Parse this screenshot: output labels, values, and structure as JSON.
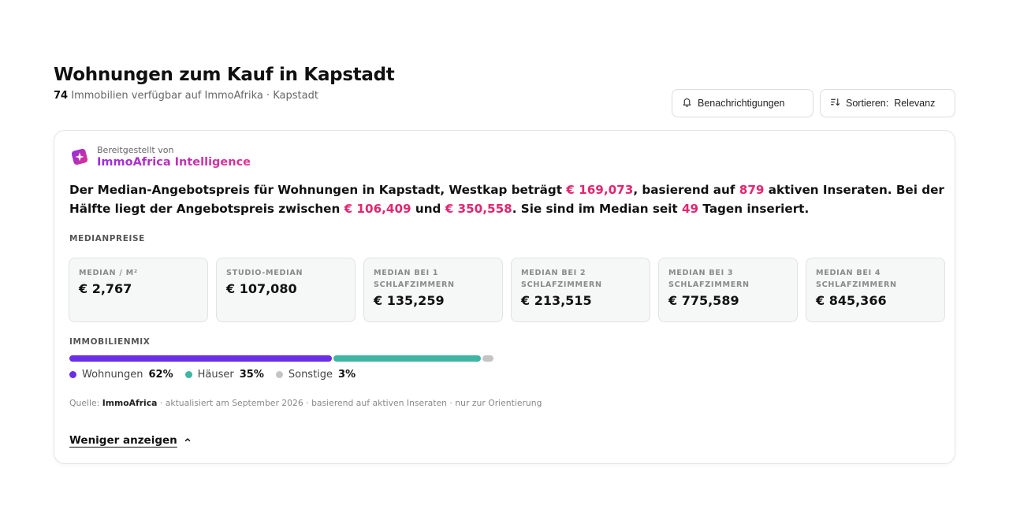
{
  "header": {
    "title": "Wohnungen zum Kauf in Kapstadt",
    "count": "74",
    "subtitle_rest": "Immobilien verfügbar auf ImmoAfrika · Kapstadt",
    "notify_label": "Benachrichtigungen",
    "sort_prefix": "Sortieren:",
    "sort_value": "Relevanz"
  },
  "card": {
    "provider_kicker": "Bereitgestellt von",
    "provider_name": "ImmoAfrica Intelligence",
    "summary": {
      "t1": "Der Median-Angebotspreis für Wohnungen in Kapstadt, Westkap beträgt ",
      "median_price": "€ 169,073",
      "t2": ", basierend auf ",
      "active_count": "879",
      "t3": " aktiven Inseraten. Bei der Hälfte liegt der Angebotspreis zwischen ",
      "range_low": "€ 106,409",
      "t4": " und ",
      "range_high": "€ 350,558",
      "t5": ". Sie sind im Median seit ",
      "days": "49",
      "t6": " Tagen inseriert."
    },
    "prices_label": "MEDIANPREISE",
    "tiles": [
      {
        "label": "MEDIAN / M²",
        "value": "€ 2,767"
      },
      {
        "label": "STUDIO-MEDIAN",
        "value": "€ 107,080"
      },
      {
        "label": "MEDIAN BEI 1 SCHLAFZIMMERN",
        "value": "€ 135,259"
      },
      {
        "label": "MEDIAN BEI 2 SCHLAFZIMMERN",
        "value": "€ 213,515"
      },
      {
        "label": "MEDIAN BEI 3 SCHLAFZIMMERN",
        "value": "€ 775,589"
      },
      {
        "label": "MEDIAN BEI 4 SCHLAFZIMMERN",
        "value": "€ 845,366"
      }
    ],
    "mix_label": "IMMOBILIENMIX",
    "mix": [
      {
        "name": "Wohnungen",
        "pct_label": "62%",
        "share": 62,
        "color": "#6a2ee8"
      },
      {
        "name": "Häuser",
        "pct_label": "35%",
        "share": 35,
        "color": "#3fb6a2"
      },
      {
        "name": "Sonstige",
        "pct_label": "3%",
        "share": 3,
        "color": "#c4c4c4"
      }
    ],
    "source": {
      "prefix": "Quelle: ",
      "name": "ImmoAfrica",
      "rest": " · aktualisiert am September 2026 · basierend auf aktiven Inseraten · nur zur Orientierung"
    },
    "toggle_label": "Weniger anzeigen"
  },
  "colors": {
    "highlight": "#e3266f",
    "brand_gradient_start": "#9a2fe0",
    "brand_gradient_end": "#e0338f"
  }
}
